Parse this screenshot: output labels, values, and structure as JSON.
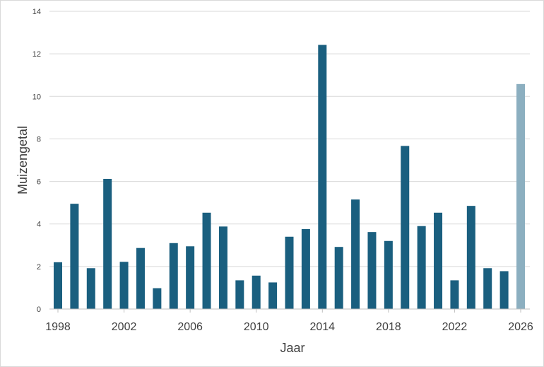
{
  "chart_data": {
    "type": "bar",
    "xlabel": "Jaar",
    "ylabel": "Muizengetal",
    "ylim": [
      0,
      14
    ],
    "y_ticks": [
      "0",
      "2",
      "4",
      "6",
      "8",
      "10",
      "12",
      "14"
    ],
    "x_ticks": [
      "1998",
      "2002",
      "2006",
      "2010",
      "2014",
      "2018",
      "2022",
      "2026"
    ],
    "grid": "horizontal",
    "colors": {
      "bar": "#1a5f7f",
      "bar_highlight": "#8cafc0",
      "grid": "#d9d9d9",
      "axis": "#bfbfbf"
    },
    "categories": [
      1998,
      1999,
      2000,
      2001,
      2002,
      2003,
      2004,
      2005,
      2006,
      2007,
      2008,
      2009,
      2010,
      2011,
      2012,
      2013,
      2014,
      2015,
      2016,
      2017,
      2018,
      2019,
      2020,
      2021,
      2022,
      2023,
      2024,
      2025,
      2026
    ],
    "values": [
      2.2,
      4.95,
      1.92,
      6.12,
      2.22,
      2.87,
      0.98,
      3.1,
      2.95,
      4.53,
      3.88,
      1.35,
      1.57,
      1.25,
      3.4,
      3.76,
      12.42,
      2.92,
      5.15,
      3.62,
      3.2,
      7.67,
      3.9,
      4.53,
      1.35,
      4.85,
      1.92,
      1.78,
      10.58
    ],
    "highlight_categories": [
      2026
    ]
  }
}
